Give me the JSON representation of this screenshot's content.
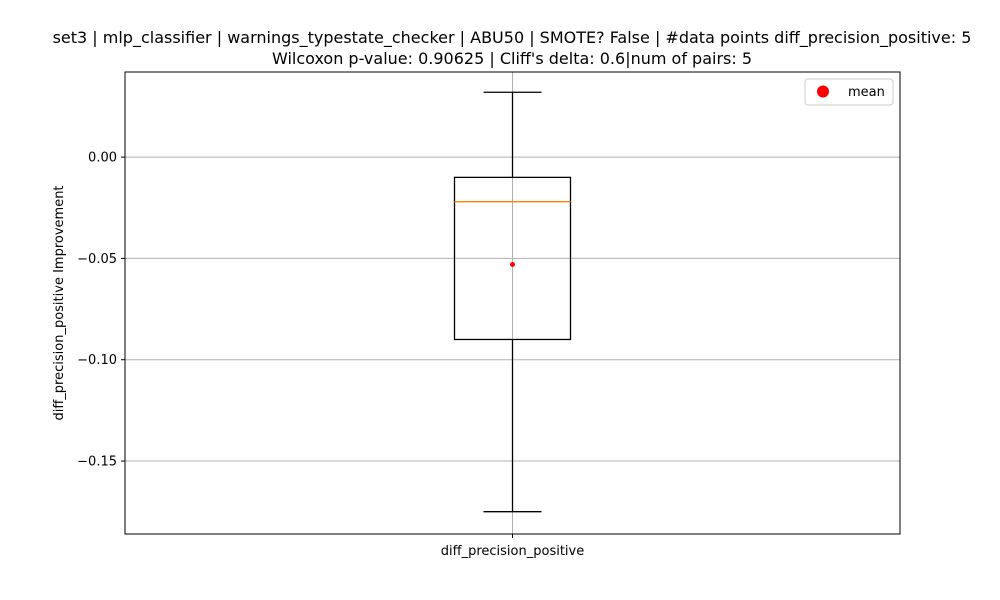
{
  "chart_data": {
    "type": "box",
    "title_line1": "set3 | mlp_classifier | warnings_typestate_checker | ABU50 | SMOTE? False | #data points diff_precision_positive: 5",
    "title_line2": "Wilcoxon p-value: 0.90625 | Cliff's delta: 0.6|num of pairs: 5",
    "xlabel": "",
    "ylabel": "diff_precision_positive Improvement",
    "categories": [
      "diff_precision_positive"
    ],
    "ylim": [
      -0.186,
      0.042
    ],
    "yticks": [
      0.0,
      -0.05,
      -0.1,
      -0.15
    ],
    "ytick_labels": [
      "0.00",
      "−0.05",
      "−0.10",
      "−0.15"
    ],
    "grid": true,
    "boxes": [
      {
        "name": "diff_precision_positive",
        "whisker_low": -0.175,
        "q1": -0.09,
        "median": -0.022,
        "q3": -0.01,
        "whisker_high": 0.032,
        "mean": -0.053
      }
    ],
    "legend": {
      "position": "top-right",
      "entries": [
        {
          "label": "mean",
          "color": "#ff0000",
          "marker": "circle"
        }
      ]
    },
    "colors": {
      "box": "#000000",
      "median": "#ff7f0e",
      "mean": "#ff0000",
      "grid": "#b0b0b0"
    }
  }
}
